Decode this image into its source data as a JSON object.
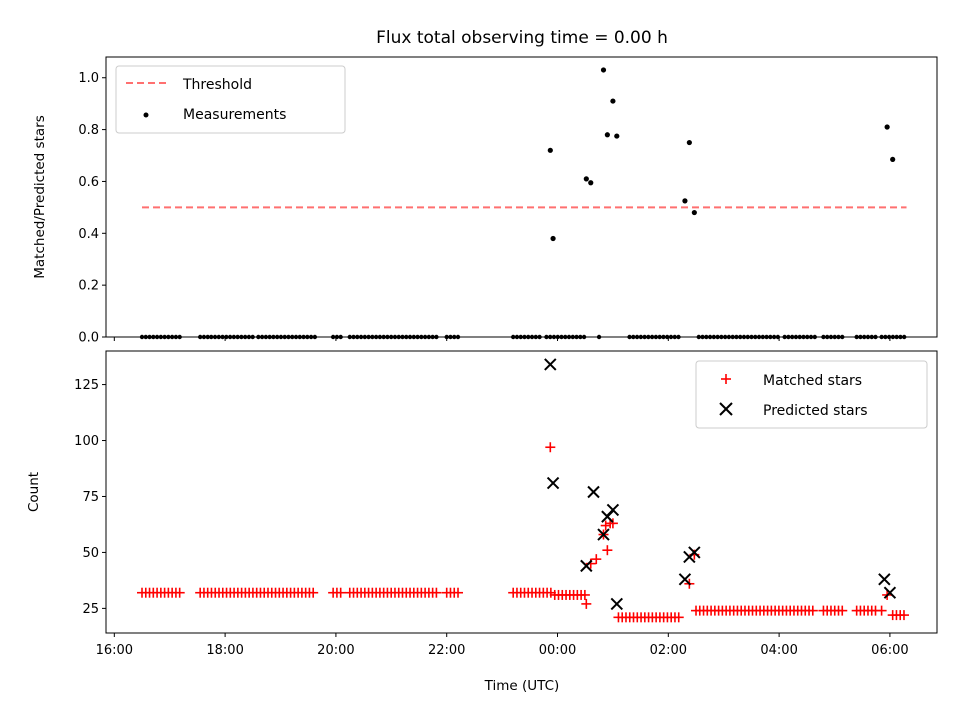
{
  "chart_data": [
    {
      "type": "scatter",
      "title": "Flux total observing time = 0.00 h",
      "xlabel": "",
      "ylabel": "Matched/Predicted stars",
      "ylim": [
        0,
        1.08
      ],
      "yticks": [
        0.0,
        0.2,
        0.4,
        0.6,
        0.8,
        1.0
      ],
      "ytick_labels": [
        "0.0",
        "0.2",
        "0.4",
        "0.6",
        "0.8",
        "1.0"
      ],
      "xlim": [
        -0.15,
        14.85
      ],
      "x_unit": "hours since 16:00 UTC",
      "legend": {
        "position": "top-left",
        "entries": [
          "Threshold",
          "Measurements"
        ]
      },
      "threshold": {
        "name": "Threshold",
        "y": 0.5,
        "x_start": 0.5,
        "x_end": 14.3,
        "color": "#ff7070",
        "style": "dashed"
      },
      "series": [
        {
          "name": "Measurements",
          "color": "#000000",
          "points": [
            [
              7.87,
              0.72
            ],
            [
              7.92,
              0.38
            ],
            [
              8.52,
              0.61
            ],
            [
              8.6,
              0.595
            ],
            [
              8.83,
              1.03
            ],
            [
              8.9,
              0.78
            ],
            [
              9.0,
              0.91
            ],
            [
              9.07,
              0.775
            ],
            [
              10.3,
              0.525
            ],
            [
              10.38,
              0.75
            ],
            [
              10.47,
              0.48
            ],
            [
              13.95,
              0.81
            ],
            [
              14.05,
              0.685
            ]
          ],
          "zero_segments": [
            [
              0.5,
              1.2
            ],
            [
              1.55,
              1.75
            ],
            [
              1.75,
              2.5
            ],
            [
              2.6,
              3.65
            ],
            [
              3.95,
              4.1
            ],
            [
              4.25,
              5.85
            ],
            [
              6.0,
              6.25
            ],
            [
              7.2,
              7.7
            ],
            [
              7.8,
              8.5
            ],
            [
              8.75,
              8.8
            ],
            [
              9.3,
              10.25
            ],
            [
              10.55,
              12.0
            ],
            [
              12.1,
              12.65
            ],
            [
              12.8,
              13.2
            ],
            [
              13.4,
              13.8
            ],
            [
              13.85,
              14.3
            ]
          ]
        }
      ]
    },
    {
      "type": "scatter",
      "title": "",
      "xlabel": "Time (UTC)",
      "ylabel": "Count",
      "ylim": [
        14,
        140
      ],
      "yticks": [
        25,
        50,
        75,
        100,
        125
      ],
      "ytick_labels": [
        "25",
        "50",
        "75",
        "100",
        "125"
      ],
      "xlim": [
        -0.15,
        14.85
      ],
      "x_unit": "hours since 16:00 UTC",
      "xticks": [
        0,
        2,
        4,
        6,
        8,
        10,
        12,
        14
      ],
      "xtick_labels": [
        "16:00",
        "18:00",
        "20:00",
        "22:00",
        "00:00",
        "02:00",
        "04:00",
        "06:00"
      ],
      "legend": {
        "position": "top-right",
        "entries": [
          "Matched stars",
          "Predicted stars"
        ]
      },
      "series": [
        {
          "name": "Matched stars",
          "color": "#ff0000",
          "marker": "plus",
          "runs": [
            {
              "start": 0.5,
              "end": 1.2,
              "y": 32
            },
            {
              "start": 1.55,
              "end": 3.65,
              "y": 32
            },
            {
              "start": 3.95,
              "end": 4.1,
              "y": 32
            },
            {
              "start": 4.25,
              "end": 5.85,
              "y": 32
            },
            {
              "start": 6.0,
              "end": 6.25,
              "y": 32
            },
            {
              "start": 7.2,
              "end": 7.9,
              "y": 32
            },
            {
              "start": 7.95,
              "end": 8.5,
              "y": 31
            },
            {
              "start": 9.1,
              "end": 10.25,
              "y": 21
            },
            {
              "start": 10.5,
              "end": 12.65,
              "y": 24
            },
            {
              "start": 12.8,
              "end": 13.2,
              "y": 24
            },
            {
              "start": 13.4,
              "end": 13.8,
              "y": 24
            },
            {
              "start": 14.05,
              "end": 14.3,
              "y": 22
            }
          ],
          "points": [
            [
              7.87,
              97
            ],
            [
              8.52,
              27
            ],
            [
              8.6,
              45
            ],
            [
              8.7,
              47
            ],
            [
              8.83,
              58
            ],
            [
              8.87,
              62
            ],
            [
              8.9,
              51
            ],
            [
              8.95,
              63
            ],
            [
              9.0,
              63
            ],
            [
              10.38,
              36
            ],
            [
              10.47,
              49
            ],
            [
              13.85,
              24
            ],
            [
              13.95,
              31
            ]
          ]
        },
        {
          "name": "Predicted stars",
          "color": "#000000",
          "marker": "x",
          "points": [
            [
              7.87,
              134
            ],
            [
              7.92,
              81
            ],
            [
              8.52,
              44
            ],
            [
              8.65,
              77
            ],
            [
              8.83,
              58
            ],
            [
              8.9,
              66
            ],
            [
              9.0,
              69
            ],
            [
              9.07,
              27
            ],
            [
              10.3,
              38
            ],
            [
              10.38,
              48
            ],
            [
              10.47,
              50
            ],
            [
              13.9,
              38
            ],
            [
              14.0,
              32
            ]
          ]
        }
      ]
    }
  ]
}
